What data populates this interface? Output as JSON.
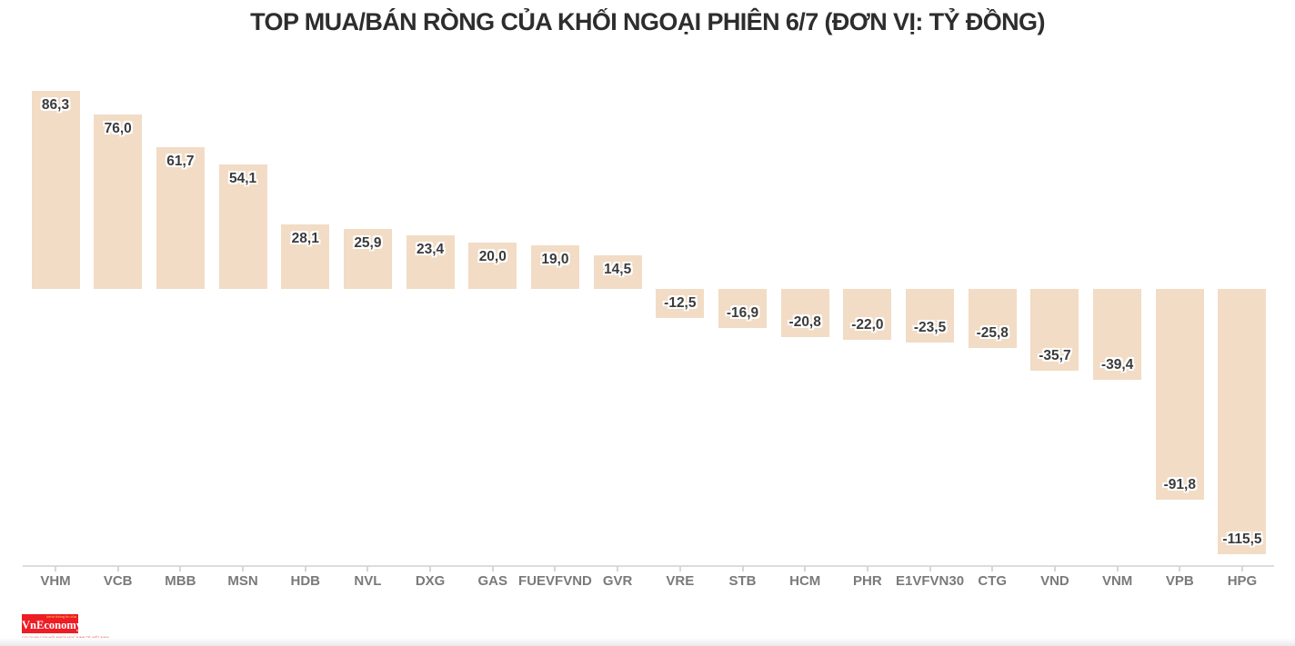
{
  "title": "TOP MUA/BÁN RÒNG CỦA KHỐI NGOẠI PHIÊN 6/7 (ĐƠN VỊ: TỶ ĐỒNG)",
  "chart_data": {
    "type": "bar",
    "title": "TOP MUA/BÁN RÒNG CỦA KHỐI NGOẠI PHIÊN 6/7 (ĐƠN VỊ: TỶ ĐỒNG)",
    "unit": "tỷ đồng",
    "categories": [
      "VHM",
      "VCB",
      "MBB",
      "MSN",
      "HDB",
      "NVL",
      "DXG",
      "GAS",
      "FUEVFVND",
      "GVR",
      "VRE",
      "STB",
      "HCM",
      "PHR",
      "E1VFVN30",
      "CTG",
      "VND",
      "VNM",
      "VPB",
      "HPG"
    ],
    "values": [
      86.3,
      76.0,
      61.7,
      54.1,
      28.1,
      25.9,
      23.4,
      20.0,
      19.0,
      14.5,
      -12.5,
      -16.9,
      -20.8,
      -22.0,
      -23.5,
      -25.8,
      -35.7,
      -39.4,
      -91.8,
      -115.5
    ],
    "value_labels": [
      "86,3",
      "76,0",
      "61,7",
      "54,1",
      "28,1",
      "25,9",
      "23,4",
      "20,0",
      "19,0",
      "14,5",
      "-12,5",
      "-16,9",
      "-20,8",
      "-22,0",
      "-23,5",
      "-25,8",
      "-35,7",
      "-39,4",
      "-91,8",
      "-115,5"
    ],
    "xlabel": "",
    "ylabel": "",
    "ylim": [
      -125,
      95
    ],
    "grid": false,
    "legend": false,
    "bar_color": "#f2dcc5",
    "label_color": "#3b3b3b",
    "axis_color": "#dcdcdc",
    "category_label_color": "#7a7a7a"
  },
  "footer": {
    "logo_text": "VnEconomy",
    "logo_top_line": "kênh thông tin của",
    "logo_tagline": "CƠ QUAN CỦA HỘI KHOA HỌC KINH TẾ VIỆT NAM",
    "logo_bg_color": "#ee1c25"
  }
}
